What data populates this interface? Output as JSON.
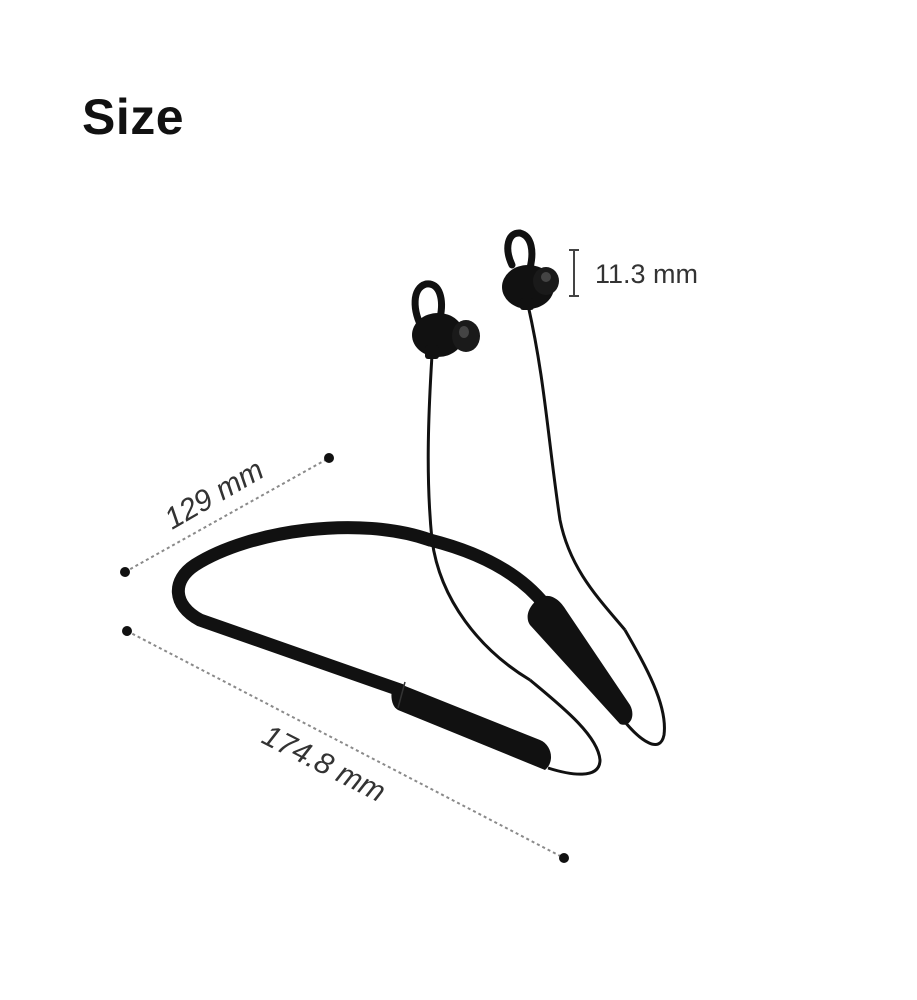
{
  "title": "Size",
  "product": "neckband-earphones",
  "dimensions": {
    "earbud_height": "11.3 mm",
    "neckband_width": "129 mm",
    "neckband_length": "174.8 mm"
  },
  "colors": {
    "product": "#111111",
    "dimension_line": "#8a8a8a",
    "text": "#333333"
  }
}
